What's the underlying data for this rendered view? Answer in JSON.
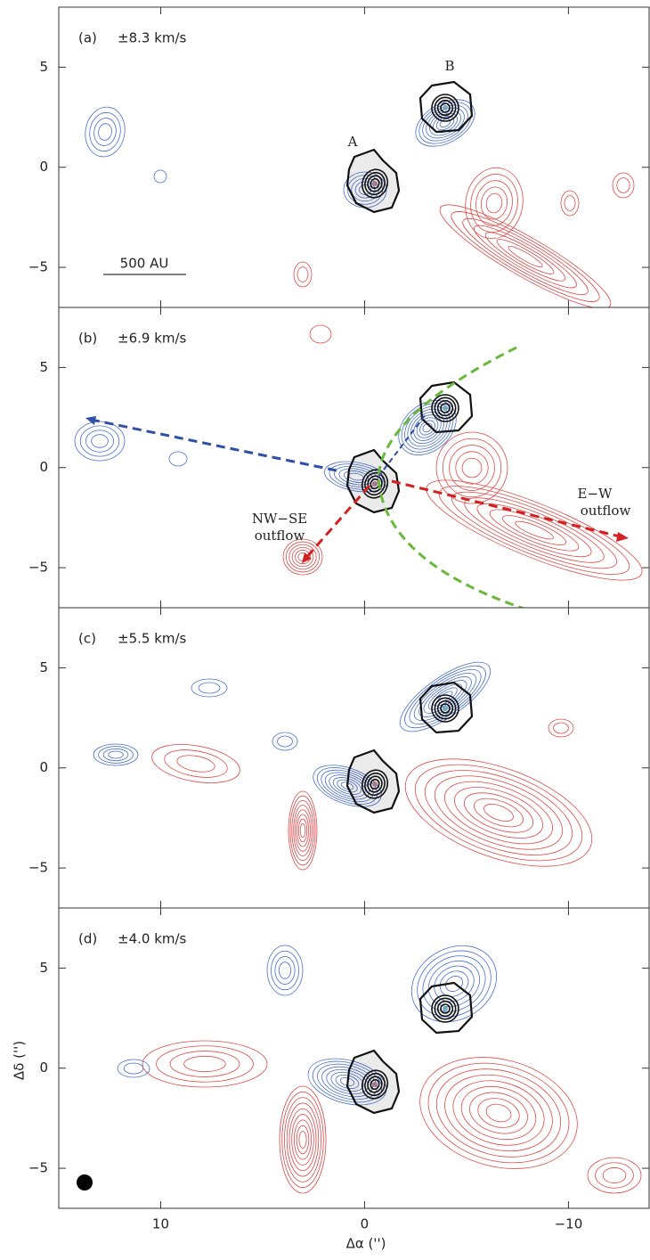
{
  "chart_data": {
    "type": "contour",
    "xlabel": "Δα ('')",
    "ylabel": "Δδ ('')",
    "xlim": [
      15,
      -14
    ],
    "ylim": [
      -7,
      8
    ],
    "xticks": [
      10,
      0,
      {
        "value": -10,
        "label": "−10"
      }
    ],
    "yticks": [
      5,
      0,
      {
        "value": -5,
        "label": "−5"
      }
    ],
    "panels": [
      {
        "label": "(a)",
        "velocity": "±8.3 km/s"
      },
      {
        "label": "(b)",
        "velocity": "±6.9 km/s"
      },
      {
        "label": "(c)",
        "velocity": "±5.5 km/s"
      },
      {
        "label": "(d)",
        "velocity": "±4.0 km/s"
      }
    ],
    "annotations": [
      "A",
      "B",
      "500 AU",
      "NW−SE",
      "outflow",
      "E−W",
      "outflow"
    ]
  }
}
